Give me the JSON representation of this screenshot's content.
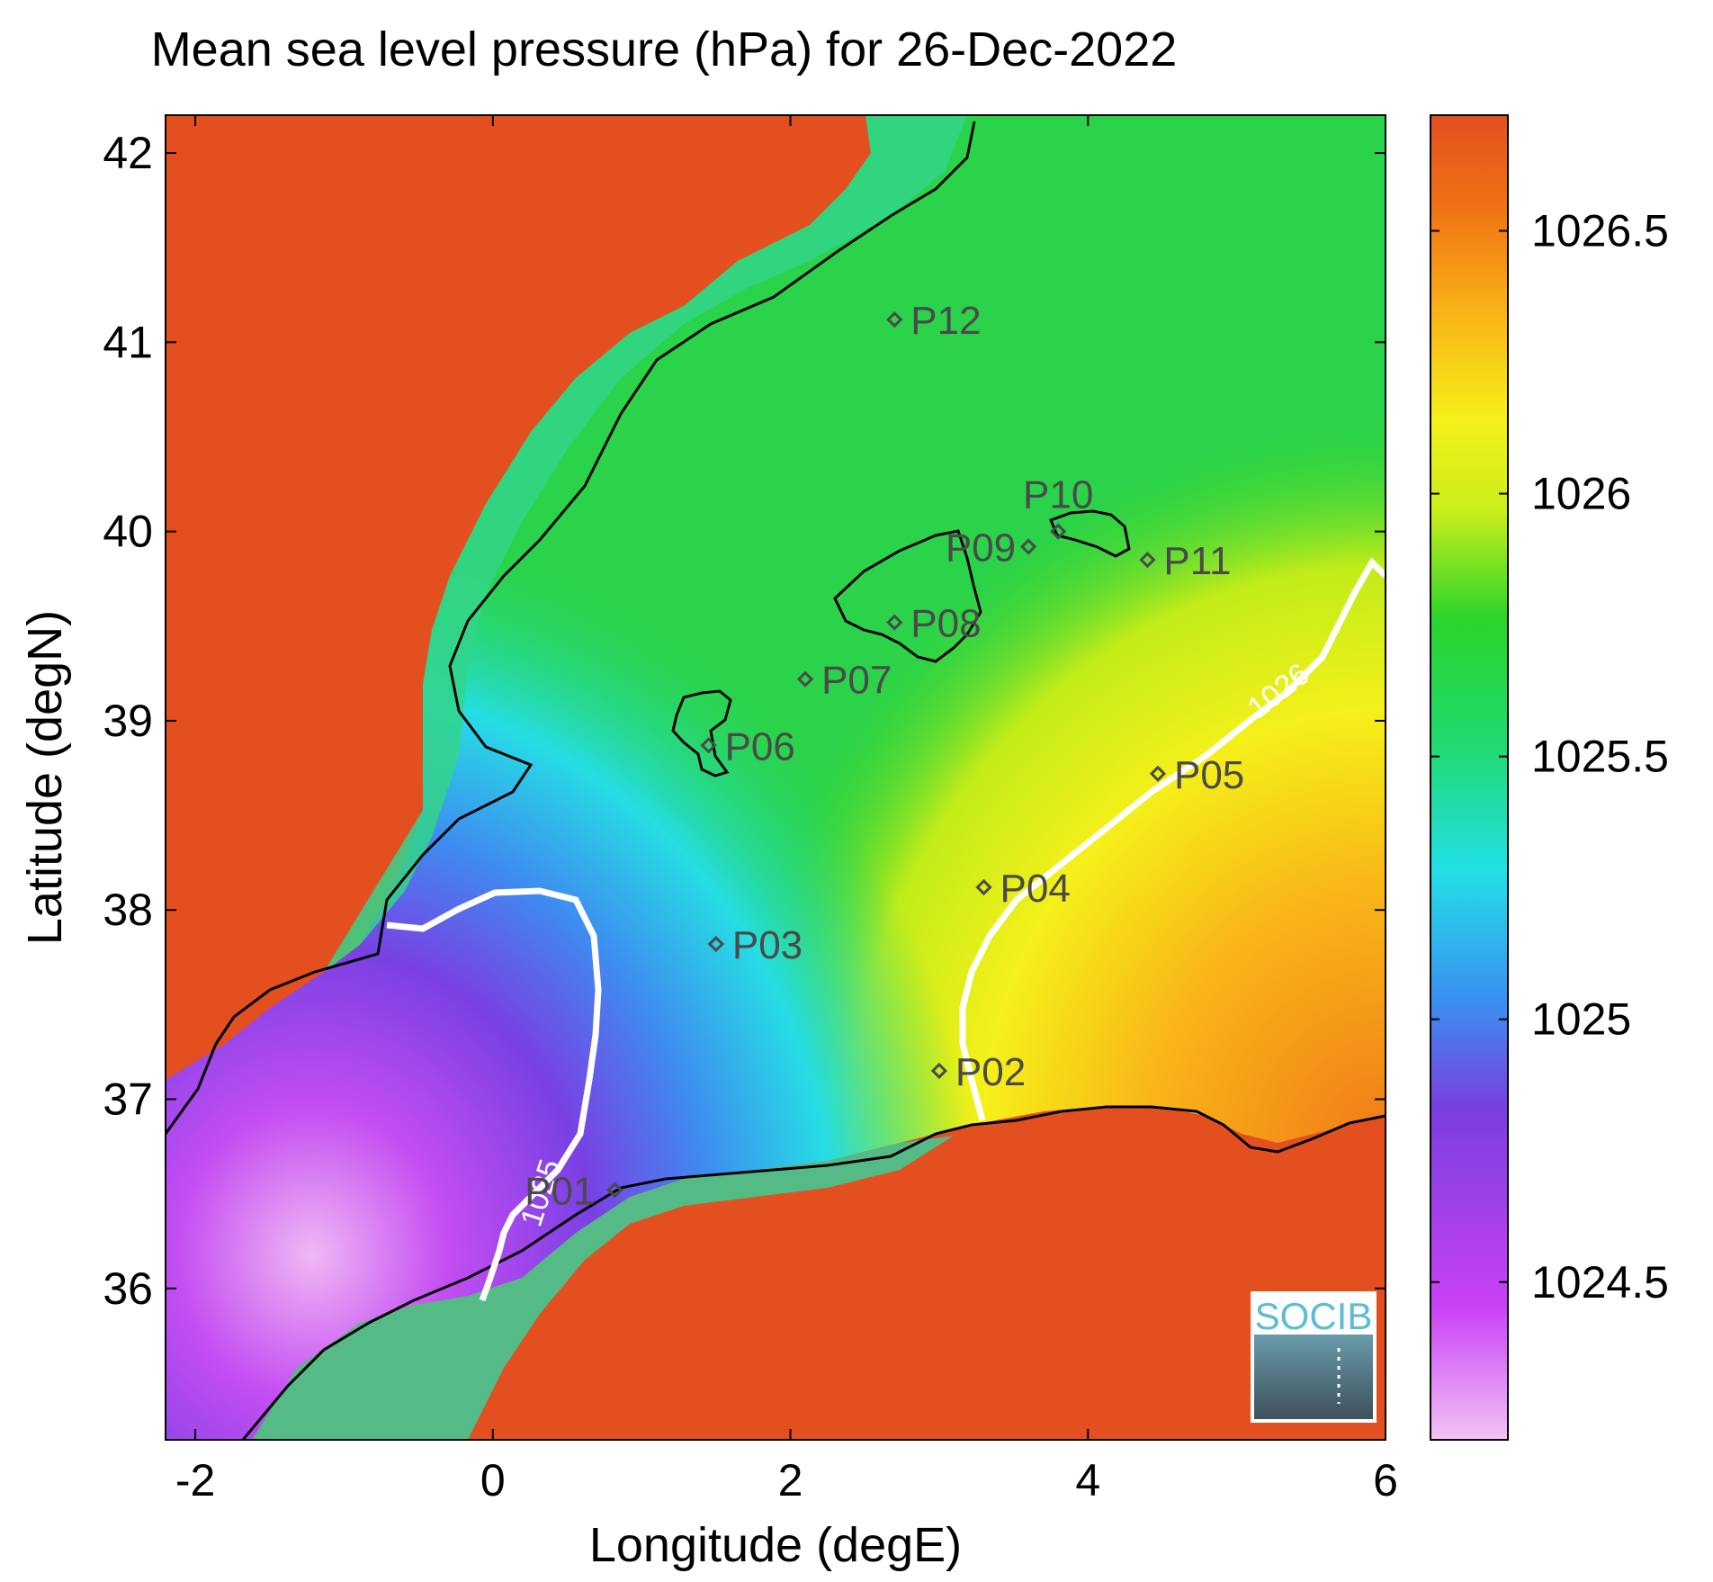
{
  "title": "Mean sea level pressure (hPa) for 26-Dec-2022",
  "x_axis": {
    "label": "Longitude (degE)",
    "range": [
      -2.2,
      6
    ],
    "ticks": [
      {
        "value": -2,
        "label": "-2"
      },
      {
        "value": 0,
        "label": "0"
      },
      {
        "value": 2,
        "label": "2"
      },
      {
        "value": 4,
        "label": "4"
      },
      {
        "value": 6,
        "label": "6"
      }
    ]
  },
  "y_axis": {
    "label": "Latitude (degN)",
    "range": [
      35.2,
      42.2
    ],
    "ticks": [
      {
        "value": 36,
        "label": "36"
      },
      {
        "value": 37,
        "label": "37"
      },
      {
        "value": 38,
        "label": "38"
      },
      {
        "value": 39,
        "label": "39"
      },
      {
        "value": 40,
        "label": "40"
      },
      {
        "value": 41,
        "label": "41"
      },
      {
        "value": 42,
        "label": "42"
      }
    ]
  },
  "colorbar": {
    "range": [
      1024.2,
      1026.72
    ],
    "ticks": [
      {
        "value": 1024.5,
        "label": "1024.5"
      },
      {
        "value": 1025,
        "label": "1025"
      },
      {
        "value": 1025.5,
        "label": "1025.5"
      },
      {
        "value": 1026,
        "label": "1026"
      },
      {
        "value": 1026.5,
        "label": "1026.5"
      }
    ],
    "colors": [
      "#f2c4f6",
      "#c942f5",
      "#7a3ee0",
      "#3b8ef0",
      "#22e0e6",
      "#20d96a",
      "#2ad42a",
      "#c8ee1a",
      "#f5f019",
      "#f9b418",
      "#f07214",
      "#e34f1f"
    ]
  },
  "contours": [
    {
      "level": "1026",
      "label": "1026"
    },
    {
      "level": "1025",
      "label": "1025"
    }
  ],
  "stations": [
    {
      "id": "P01",
      "lon": 0.82,
      "lat": 36.52
    },
    {
      "id": "P02",
      "lon": 3.0,
      "lat": 37.15
    },
    {
      "id": "P03",
      "lon": 1.5,
      "lat": 37.82
    },
    {
      "id": "P04",
      "lon": 3.3,
      "lat": 38.12
    },
    {
      "id": "P05",
      "lon": 4.47,
      "lat": 38.72
    },
    {
      "id": "P06",
      "lon": 1.45,
      "lat": 38.87
    },
    {
      "id": "P07",
      "lon": 2.1,
      "lat": 39.22
    },
    {
      "id": "P08",
      "lon": 2.7,
      "lat": 39.52
    },
    {
      "id": "P09",
      "lon": 3.6,
      "lat": 39.92
    },
    {
      "id": "P10",
      "lon": 3.8,
      "lat": 40.0
    },
    {
      "id": "P11",
      "lon": 4.4,
      "lat": 39.85
    },
    {
      "id": "P12",
      "lon": 2.7,
      "lat": 41.12
    }
  ],
  "logo": {
    "text": "SOCIB"
  }
}
